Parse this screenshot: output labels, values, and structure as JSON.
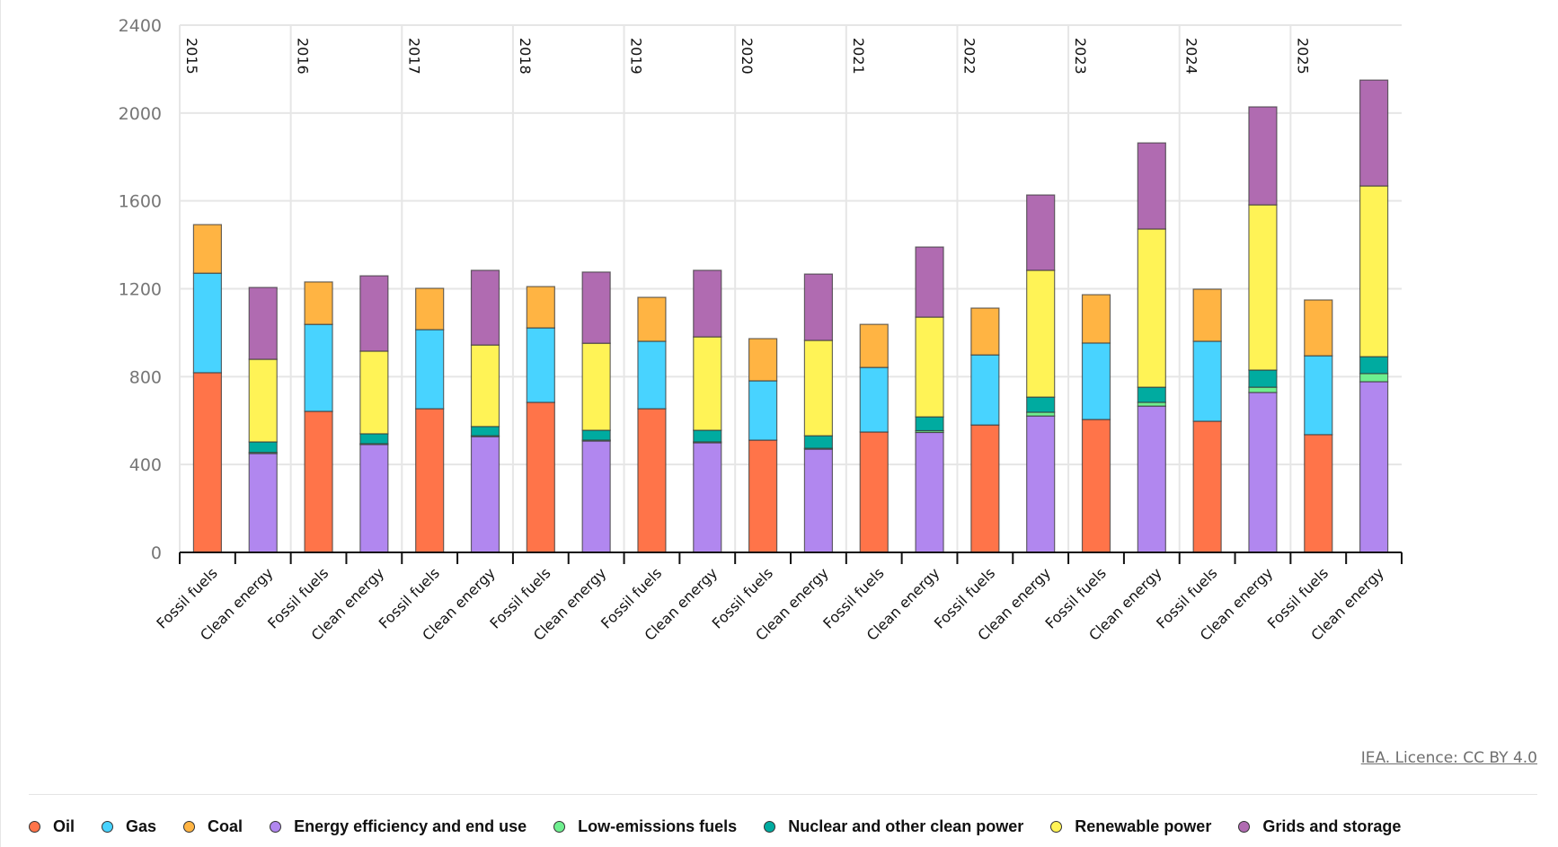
{
  "chart_data": {
    "type": "bar",
    "stacked": true,
    "title": "",
    "xlabel": "",
    "ylabel": "",
    "ylim": [
      0,
      2400
    ],
    "yticks": [
      0,
      400,
      800,
      1200,
      1600,
      2000,
      2400
    ],
    "grid": true,
    "years": [
      "2015",
      "2016",
      "2017",
      "2018",
      "2019",
      "2020",
      "2021",
      "2022",
      "2023",
      "2024",
      "2025"
    ],
    "groups": [
      "Fossil fuels",
      "Clean energy"
    ],
    "series": [
      {
        "name": "Oil",
        "group": "Fossil fuels",
        "color": "#ff7449",
        "values": [
          818,
          642,
          654,
          683,
          654,
          511,
          548,
          580,
          605,
          597,
          536
        ]
      },
      {
        "name": "Gas",
        "group": "Fossil fuels",
        "color": "#48d3ff",
        "values": [
          453,
          396,
          360,
          339,
          307,
          270,
          294,
          319,
          348,
          364,
          359
        ]
      },
      {
        "name": "Coal",
        "group": "Fossil fuels",
        "color": "#ffb443",
        "values": [
          221,
          193,
          188,
          188,
          200,
          192,
          196,
          213,
          220,
          237,
          254
        ]
      },
      {
        "name": "Energy efficiency and end use",
        "group": "Clean energy",
        "color": "#b187ef",
        "values": [
          450,
          491,
          527,
          507,
          499,
          470,
          546,
          621,
          666,
          728,
          777
        ]
      },
      {
        "name": "Low-emissions fuels",
        "group": "Clean energy",
        "color": "#6fef8f",
        "values": [
          5,
          4,
          4,
          4,
          4,
          4,
          8,
          17,
          17,
          24,
          37
        ]
      },
      {
        "name": "Nuclear and other clean power",
        "group": "Clean energy",
        "color": "#00aba0",
        "values": [
          48,
          45,
          42,
          45,
          53,
          57,
          63,
          69,
          69,
          78,
          77
        ]
      },
      {
        "name": "Renewable power",
        "group": "Clean energy",
        "color": "#fff356",
        "values": [
          376,
          376,
          371,
          396,
          425,
          434,
          454,
          577,
          720,
          752,
          777
        ]
      },
      {
        "name": "Grids and storage",
        "group": "Clean energy",
        "color": "#b06bb1",
        "values": [
          327,
          343,
          340,
          324,
          303,
          302,
          319,
          343,
          392,
          446,
          482
        ]
      }
    ],
    "legend_position": "bottom"
  },
  "legend": [
    {
      "label": "Oil",
      "color": "#ff7449"
    },
    {
      "label": "Gas",
      "color": "#48d3ff"
    },
    {
      "label": "Coal",
      "color": "#ffb443"
    },
    {
      "label": "Energy efficiency and end use",
      "color": "#b187ef"
    },
    {
      "label": "Low-emissions fuels",
      "color": "#6fef8f"
    },
    {
      "label": "Nuclear and other clean power",
      "color": "#00aba0"
    },
    {
      "label": "Renewable power",
      "color": "#fff356"
    },
    {
      "label": "Grids and storage",
      "color": "#b06bb1"
    }
  ],
  "license": "IEA. Licence: CC BY 4.0"
}
